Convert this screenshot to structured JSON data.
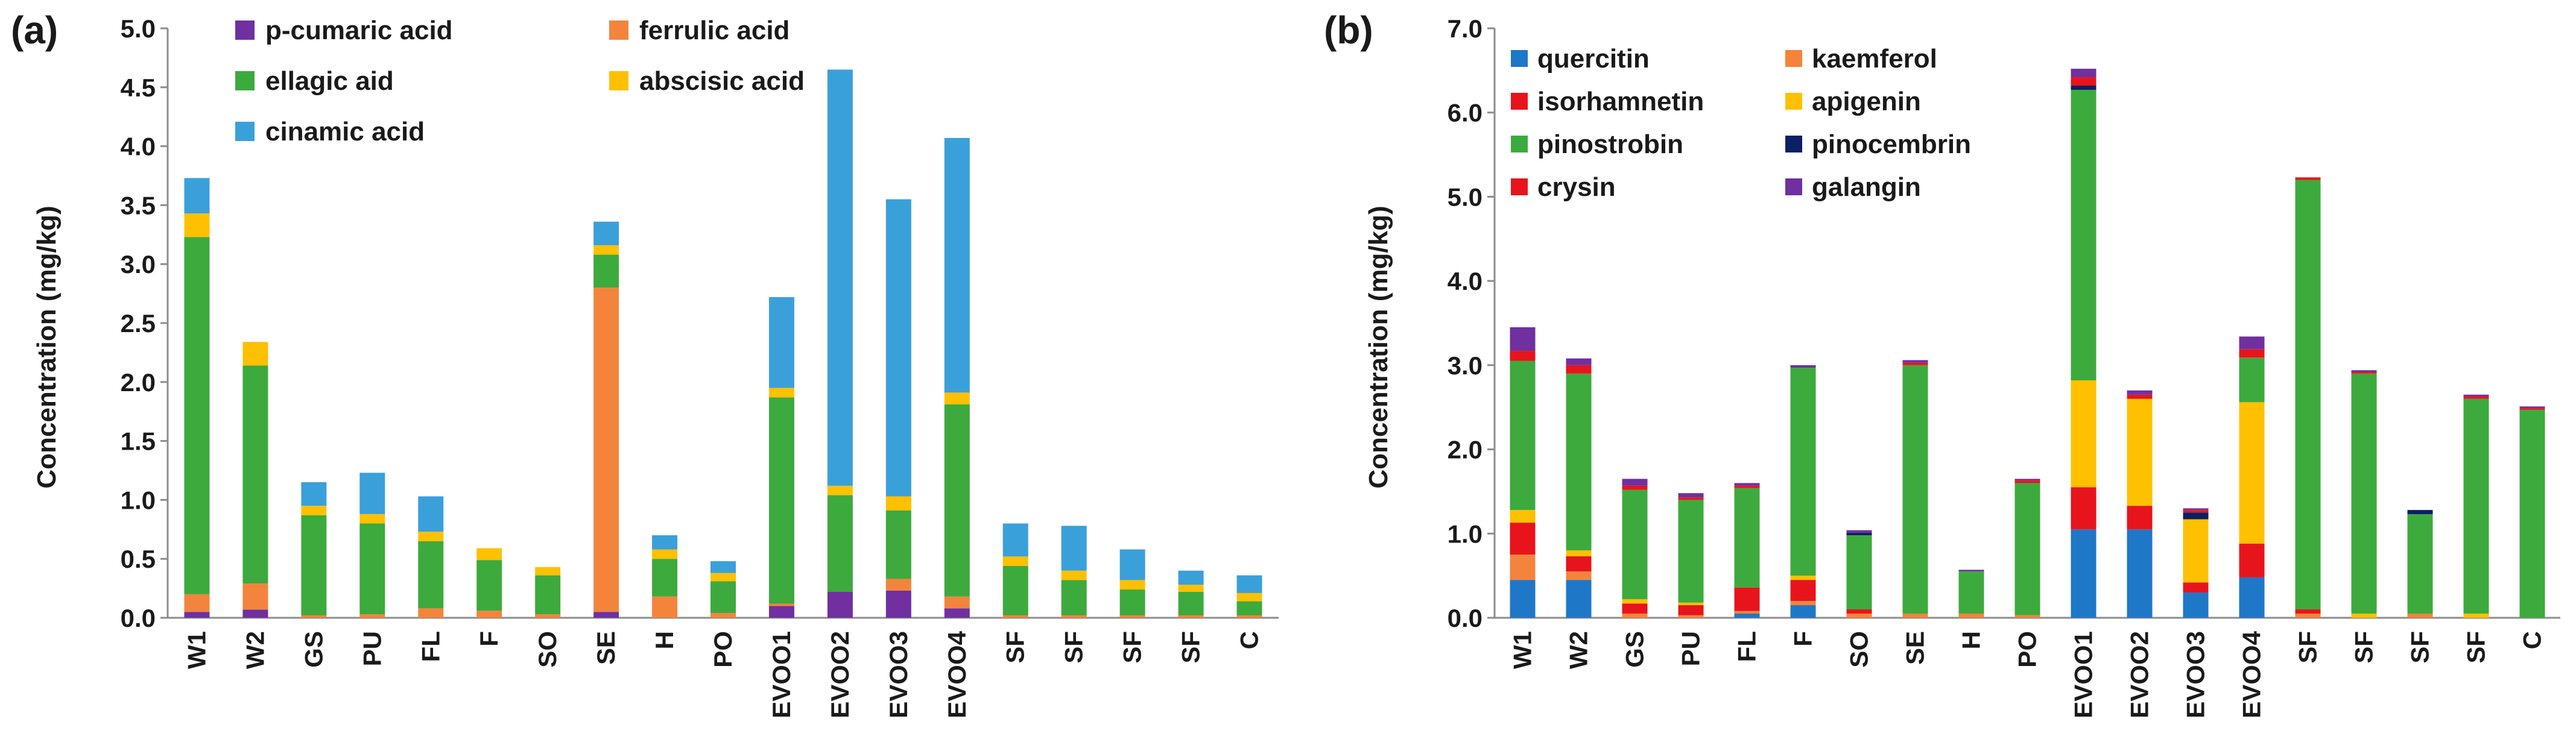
{
  "colors": {
    "purple": "#7030A0",
    "orange": "#F4843C",
    "green": "#3DAA3D",
    "yellow": "#FFC000",
    "lightblue": "#3AA0DA",
    "blue": "#1F77C8",
    "red": "#E8141C",
    "navy": "#0B1F66"
  },
  "chart_data": [
    {
      "type": "bar",
      "stacked": true,
      "panel_label": "(a)",
      "title": "",
      "xlabel": "",
      "ylabel": "Concentration (mg/kg)",
      "ylim": [
        0,
        5.0
      ],
      "ytick_step": 0.5,
      "ytick_labels": [
        "0.0",
        "0.5",
        "1.0",
        "1.5",
        "2.0",
        "2.5",
        "3.0",
        "3.5",
        "4.0",
        "4.5",
        "5.0"
      ],
      "grid": false,
      "legend_position": "top-left",
      "legend_columns": 2,
      "categories": [
        "W1",
        "W2",
        "GS",
        "PU",
        "FL",
        "F",
        "SO",
        "SE",
        "H",
        "PO",
        "EVOO1",
        "EVOO2",
        "EVOO3",
        "EVOO4",
        "SF",
        "SF",
        "SF",
        "SF",
        "C"
      ],
      "series": [
        {
          "name": "p-cumaric acid",
          "color_key": "purple",
          "values": [
            0.05,
            0.07,
            0,
            0,
            0,
            0,
            0,
            0.05,
            0,
            0,
            0.1,
            0.22,
            0.23,
            0.08,
            0,
            0,
            0,
            0,
            0
          ]
        },
        {
          "name": "ferrulic acid",
          "color_key": "orange",
          "values": [
            0.15,
            0.22,
            0.02,
            0.03,
            0.08,
            0.06,
            0.03,
            2.75,
            0.18,
            0.04,
            0.02,
            0,
            0.1,
            0.1,
            0.02,
            0.02,
            0.02,
            0.02,
            0.02
          ]
        },
        {
          "name": "ellagic aid",
          "color_key": "green",
          "values": [
            3.03,
            1.85,
            0.85,
            0.77,
            0.57,
            0.43,
            0.33,
            0.28,
            0.32,
            0.27,
            1.75,
            0.82,
            0.58,
            1.63,
            0.42,
            0.3,
            0.22,
            0.2,
            0.12
          ]
        },
        {
          "name": "abscisic acid",
          "color_key": "yellow",
          "values": [
            0.2,
            0.2,
            0.08,
            0.08,
            0.08,
            0.1,
            0.07,
            0.08,
            0.08,
            0.07,
            0.08,
            0.08,
            0.12,
            0.1,
            0.08,
            0.08,
            0.08,
            0.06,
            0.07
          ]
        },
        {
          "name": "cinamic acid",
          "color_key": "lightblue",
          "values": [
            0.3,
            0,
            0.2,
            0.35,
            0.3,
            0,
            0,
            0.2,
            0.12,
            0.1,
            0.77,
            3.53,
            2.52,
            2.16,
            0.28,
            0.38,
            0.26,
            0.12,
            0.15
          ]
        }
      ]
    },
    {
      "type": "bar",
      "stacked": true,
      "panel_label": "(b)",
      "title": "",
      "xlabel": "",
      "ylabel": "Concentration (mg/kg)",
      "ylim": [
        0,
        7.0
      ],
      "ytick_step": 1.0,
      "ytick_labels": [
        "0.0",
        "1.0",
        "2.0",
        "3.0",
        "4.0",
        "5.0",
        "6.0",
        "7.0"
      ],
      "grid": false,
      "legend_position": "top-left",
      "legend_columns": 2,
      "categories": [
        "W1",
        "W2",
        "GS",
        "PU",
        "FL",
        "F",
        "SO",
        "SE",
        "H",
        "PO",
        "EVOO1",
        "EVOO2",
        "EVOO3",
        "EVOO4",
        "SF",
        "SF",
        "SF",
        "SF",
        "C"
      ],
      "series": [
        {
          "name": "quercitin",
          "color_key": "blue",
          "values": [
            0.45,
            0.45,
            0,
            0,
            0.05,
            0.15,
            0,
            0,
            0,
            0,
            1.05,
            1.05,
            0.3,
            0.48,
            0,
            0,
            0,
            0,
            0
          ]
        },
        {
          "name": "kaemferol",
          "color_key": "orange",
          "values": [
            0.3,
            0.1,
            0.05,
            0.03,
            0.03,
            0.05,
            0.05,
            0.05,
            0.05,
            0.03,
            0,
            0,
            0,
            0,
            0.05,
            0,
            0.05,
            0,
            0
          ]
        },
        {
          "name": "isorhamnetin",
          "color_key": "red",
          "values": [
            0.38,
            0.18,
            0.12,
            0.12,
            0.28,
            0.25,
            0.05,
            0,
            0,
            0,
            0.5,
            0.28,
            0.12,
            0.4,
            0.05,
            0,
            0,
            0,
            0
          ]
        },
        {
          "name": "apigenin",
          "color_key": "yellow",
          "values": [
            0.15,
            0.07,
            0.05,
            0.03,
            0,
            0.05,
            0,
            0,
            0,
            0,
            1.27,
            1.27,
            0.75,
            1.68,
            0,
            0.05,
            0,
            0.05,
            0
          ]
        },
        {
          "name": "pinostrobin",
          "color_key": "green",
          "values": [
            1.77,
            2.1,
            1.3,
            1.22,
            1.18,
            2.47,
            0.88,
            2.95,
            0.5,
            1.57,
            3.45,
            0,
            0,
            0.53,
            5.1,
            2.85,
            1.18,
            2.55,
            2.47
          ]
        },
        {
          "name": "pinocembrin",
          "color_key": "navy",
          "values": [
            0,
            0,
            0,
            0,
            0,
            0,
            0.03,
            0,
            0,
            0,
            0.05,
            0,
            0.08,
            0,
            0,
            0,
            0.05,
            0,
            0
          ]
        },
        {
          "name": "crysin",
          "color_key": "red",
          "values": [
            0.12,
            0.1,
            0.05,
            0.03,
            0.03,
            0,
            0,
            0.03,
            0,
            0.03,
            0.1,
            0.05,
            0.03,
            0.1,
            0.03,
            0.02,
            0,
            0.03,
            0.02
          ]
        },
        {
          "name": "galangin",
          "color_key": "purple",
          "values": [
            0.28,
            0.08,
            0.08,
            0.05,
            0.03,
            0.03,
            0.03,
            0.03,
            0.02,
            0.02,
            0.1,
            0.05,
            0.02,
            0.15,
            0,
            0.02,
            0,
            0.02,
            0.02
          ]
        }
      ]
    }
  ]
}
